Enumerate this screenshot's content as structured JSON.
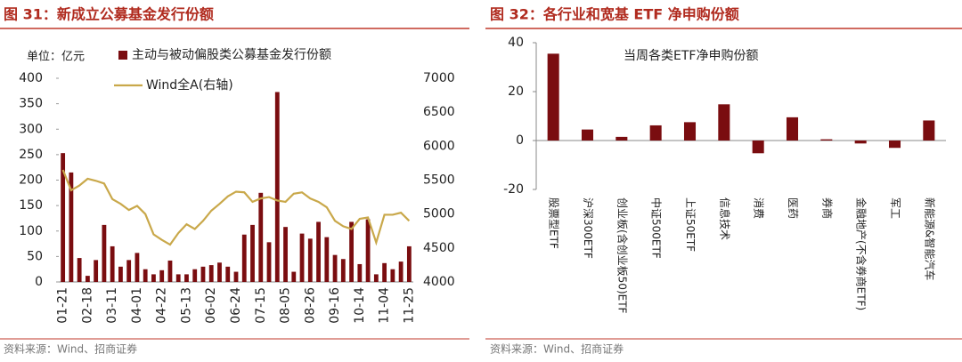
{
  "chart_data": [
    {
      "type": "bar",
      "title": "图 31：新成立公募基金发行份额",
      "y_label": "单位：亿元",
      "source": "资料来源：Wind、招商证券",
      "legend": "top",
      "categories": [
        "01-21",
        null,
        null,
        "02-18",
        null,
        null,
        "03-11",
        null,
        null,
        "04-01",
        null,
        null,
        "04-22",
        null,
        null,
        "05-13",
        null,
        null,
        "06-02",
        null,
        null,
        "06-24",
        null,
        null,
        "07-15",
        null,
        null,
        "08-05",
        null,
        null,
        "08-26",
        null,
        null,
        "09-16",
        null,
        null,
        "10-14",
        null,
        null,
        "11-04",
        null,
        null,
        "11-25"
      ],
      "series": [
        {
          "name": "主动与被动偏股类公募基金发行份额",
          "type": "bar",
          "color": "#7a0d10",
          "values": [
            253,
            215,
            47,
            12,
            43,
            112,
            70,
            30,
            43,
            57,
            25,
            15,
            23,
            42,
            15,
            15,
            25,
            30,
            33,
            38,
            30,
            20,
            93,
            112,
            175,
            78,
            373,
            108,
            20,
            95,
            85,
            118,
            88,
            53,
            45,
            118,
            35,
            123,
            15,
            37,
            25,
            40,
            70
          ]
        },
        {
          "name": "Wind全A(右轴)",
          "type": "line",
          "axis": "y2",
          "color": "#c9a84a",
          "values": [
            5650,
            5350,
            5420,
            5520,
            5490,
            5450,
            5220,
            5150,
            5060,
            5120,
            5000,
            4700,
            4620,
            4550,
            4720,
            4850,
            4780,
            4900,
            5050,
            5150,
            5260,
            5330,
            5320,
            5180,
            5230,
            5250,
            5200,
            5180,
            5300,
            5320,
            5230,
            5180,
            5100,
            4900,
            4820,
            4780,
            4930,
            4950,
            4580,
            4990,
            4990,
            5020,
            4900
          ]
        }
      ],
      "ylim": [
        0,
        400
      ],
      "yticks": [
        0,
        50,
        100,
        150,
        200,
        250,
        300,
        350,
        400
      ],
      "y2lim": [
        4000,
        7000
      ],
      "y2ticks": [
        4000,
        4500,
        5000,
        5500,
        6000,
        6500,
        7000
      ]
    },
    {
      "type": "bar",
      "title": "图 32：各行业和宽基 ETF 净申购份额",
      "subtitle": "当周各类ETF净申购份额",
      "source": "资料来源：Wind、招商证券",
      "color": "#7a0d10",
      "categories": [
        "股票型ETF",
        "沪深300ETF",
        "创业板(含创业板50)ETF",
        "中证500ETF",
        "上证50ETF",
        "信息技术",
        "消费",
        "医药",
        "券商",
        "金融地产(不含券商ETF)",
        "军工",
        "新能源&智能汽车"
      ],
      "values": [
        35.5,
        4.5,
        1.5,
        6.2,
        7.5,
        14.8,
        -5.2,
        9.5,
        0.5,
        -1.2,
        -3.0,
        8.2
      ],
      "ylim": [
        -20,
        40
      ],
      "yticks": [
        -20,
        0,
        20,
        40
      ]
    }
  ]
}
